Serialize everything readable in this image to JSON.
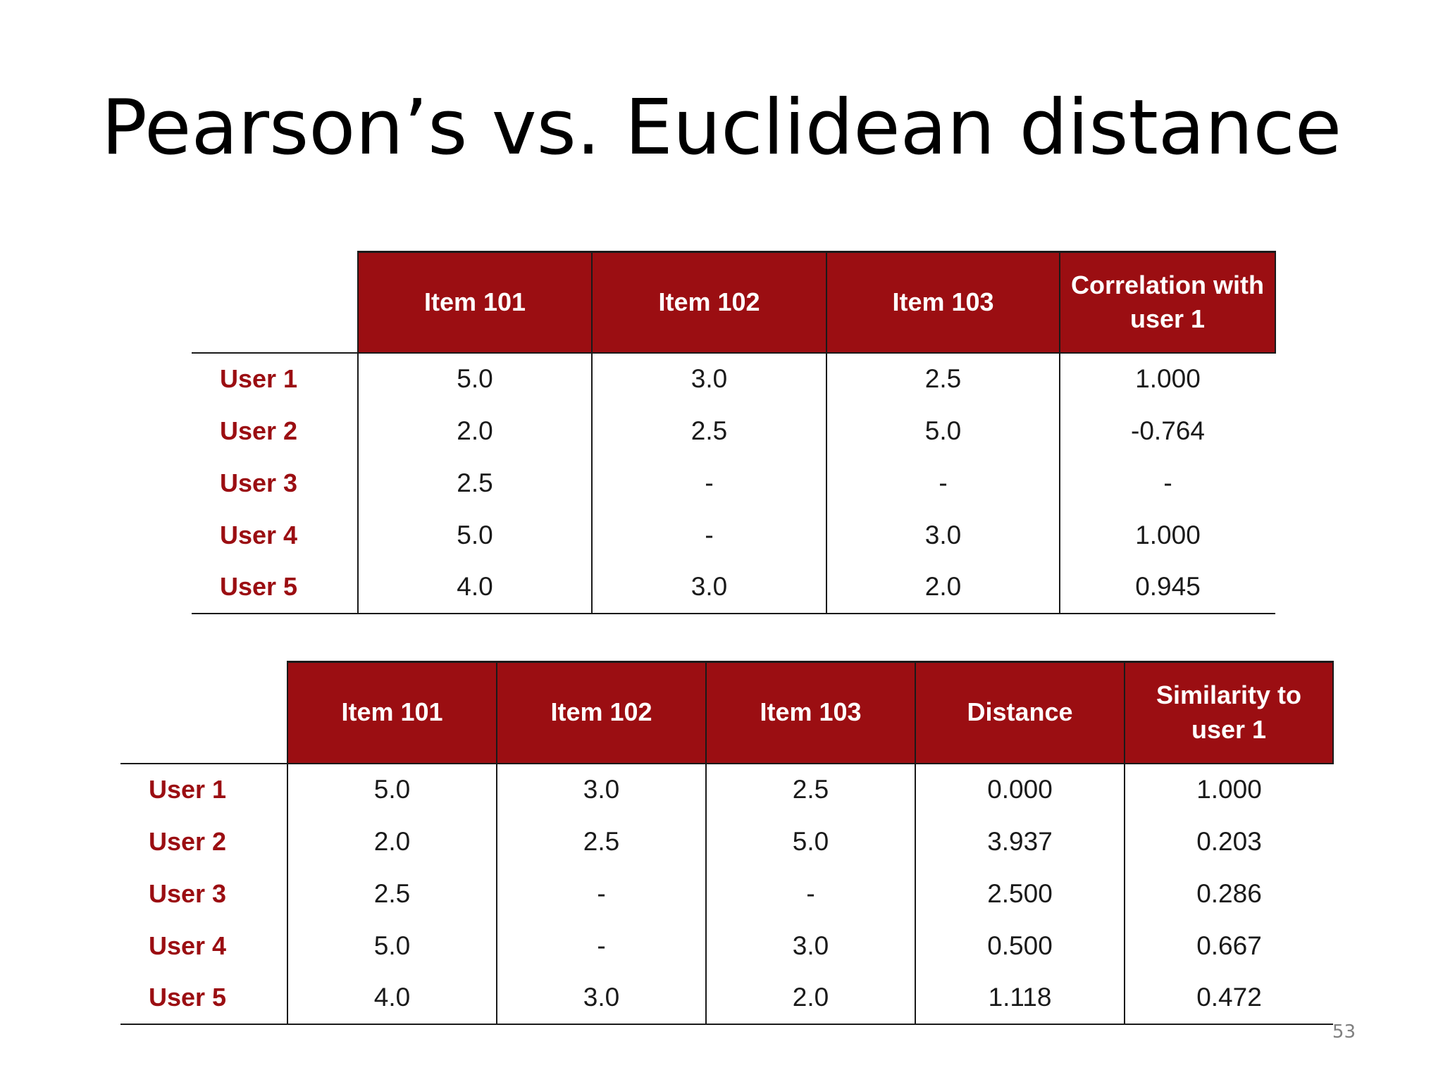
{
  "slide": {
    "title": "Pearson’s vs. Euclidean distance",
    "page_number": "53"
  },
  "colors": {
    "header_background": "#9b0e12",
    "header_text": "#ffffff",
    "row_label_text": "#9b0e12",
    "cell_text": "#1a1a1a",
    "rule_lines": "#1a1a1a"
  },
  "pearson_table": {
    "headers": [
      "Item 101",
      "Item 102",
      "Item 103",
      "Correlation with user 1"
    ],
    "rows": [
      {
        "label": "User 1",
        "values": [
          "5.0",
          "3.0",
          "2.5",
          "1.000"
        ]
      },
      {
        "label": "User 2",
        "values": [
          "2.0",
          "2.5",
          "5.0",
          "-0.764"
        ]
      },
      {
        "label": "User 3",
        "values": [
          "2.5",
          "-",
          "-",
          "-"
        ]
      },
      {
        "label": "User 4",
        "values": [
          "5.0",
          "-",
          "3.0",
          "1.000"
        ]
      },
      {
        "label": "User 5",
        "values": [
          "4.0",
          "3.0",
          "2.0",
          "0.945"
        ]
      }
    ]
  },
  "euclidean_table": {
    "headers": [
      "Item 101",
      "Item 102",
      "Item 103",
      "Distance",
      "Similarity to user 1"
    ],
    "rows": [
      {
        "label": "User 1",
        "values": [
          "5.0",
          "3.0",
          "2.5",
          "0.000",
          "1.000"
        ]
      },
      {
        "label": "User 2",
        "values": [
          "2.0",
          "2.5",
          "5.0",
          "3.937",
          "0.203"
        ]
      },
      {
        "label": "User 3",
        "values": [
          "2.5",
          "-",
          "-",
          "2.500",
          "0.286"
        ]
      },
      {
        "label": "User 4",
        "values": [
          "5.0",
          "-",
          "3.0",
          "0.500",
          "0.667"
        ]
      },
      {
        "label": "User 5",
        "values": [
          "4.0",
          "3.0",
          "2.0",
          "1.118",
          "0.472"
        ]
      }
    ]
  }
}
